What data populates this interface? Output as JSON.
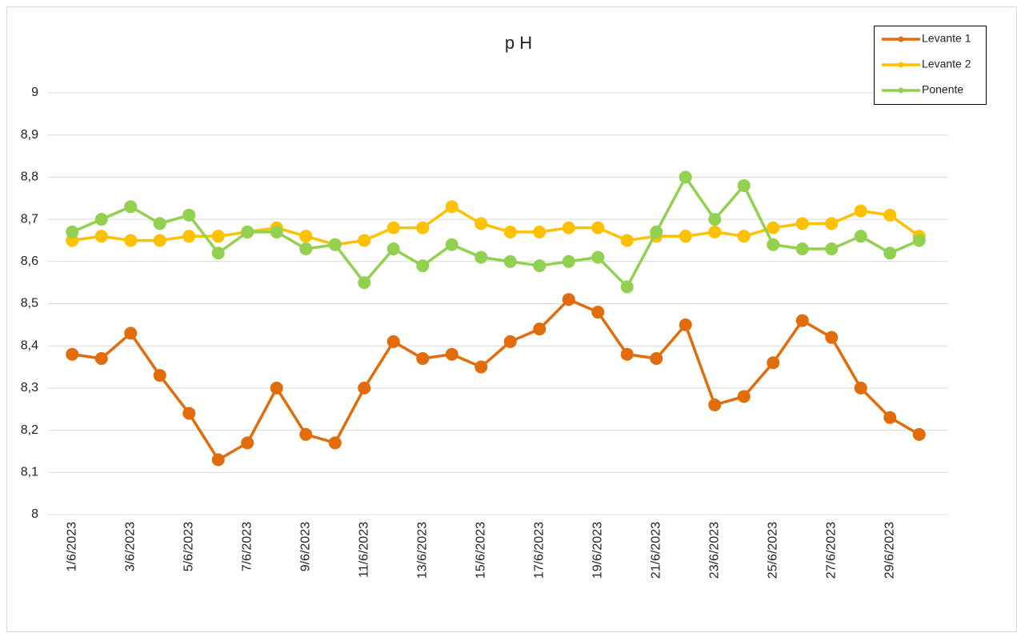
{
  "chart_data": {
    "type": "line",
    "title": "p H",
    "categories": [
      "1/6/2023",
      null,
      "3/6/2023",
      null,
      "5/6/2023",
      null,
      "7/6/2023",
      null,
      "9/6/2023",
      null,
      "11/6/2023",
      null,
      "13/6/2023",
      null,
      "15/6/2023",
      null,
      "17/6/2023",
      null,
      "19/6/2023",
      null,
      "21/6/2023",
      null,
      "23/6/2023",
      null,
      "25/6/2023",
      null,
      "27/6/2023",
      null,
      "29/6/2023",
      null
    ],
    "series": [
      {
        "name": "Levante 1",
        "color": "#e36c0a",
        "values": [
          8.38,
          8.37,
          8.43,
          8.33,
          8.24,
          8.13,
          8.17,
          8.3,
          8.19,
          8.17,
          8.3,
          8.41,
          8.37,
          8.38,
          8.35,
          8.41,
          8.44,
          8.51,
          8.48,
          8.38,
          8.37,
          8.45,
          8.26,
          8.28,
          8.36,
          8.46,
          8.42,
          8.3,
          8.23,
          8.19
        ]
      },
      {
        "name": "Levante 2",
        "color": "#ffc000",
        "values": [
          8.65,
          8.66,
          8.65,
          8.65,
          8.66,
          8.66,
          8.67,
          8.68,
          8.66,
          8.64,
          8.65,
          8.68,
          8.68,
          8.73,
          8.69,
          8.67,
          8.67,
          8.68,
          8.68,
          8.65,
          8.66,
          8.66,
          8.67,
          8.66,
          8.68,
          8.69,
          8.69,
          8.72,
          8.71,
          8.66
        ]
      },
      {
        "name": "Ponente",
        "color": "#92d050",
        "values": [
          8.67,
          8.7,
          8.73,
          8.69,
          8.71,
          8.62,
          8.67,
          8.67,
          8.63,
          8.64,
          8.55,
          8.63,
          8.59,
          8.64,
          8.61,
          8.6,
          8.59,
          8.6,
          8.61,
          8.54,
          8.67,
          8.8,
          8.7,
          8.78,
          8.64,
          8.63,
          8.63,
          8.66,
          8.62,
          8.65
        ]
      }
    ],
    "ylim": [
      8,
      9
    ],
    "yticks": [
      8,
      {
        "value": 8.1,
        "label": "8,1"
      },
      {
        "value": 8.2,
        "label": "8,2"
      },
      {
        "value": 8.3,
        "label": "8,3"
      },
      {
        "value": 8.4,
        "label": "8,4"
      },
      {
        "value": 8.5,
        "label": "8,5"
      },
      {
        "value": 8.6,
        "label": "8,6"
      },
      {
        "value": 8.7,
        "label": "8,7"
      },
      {
        "value": 8.8,
        "label": "8,8"
      },
      {
        "value": 8.9,
        "label": "8,9"
      },
      9
    ],
    "grid": true,
    "legend": "top-right"
  }
}
